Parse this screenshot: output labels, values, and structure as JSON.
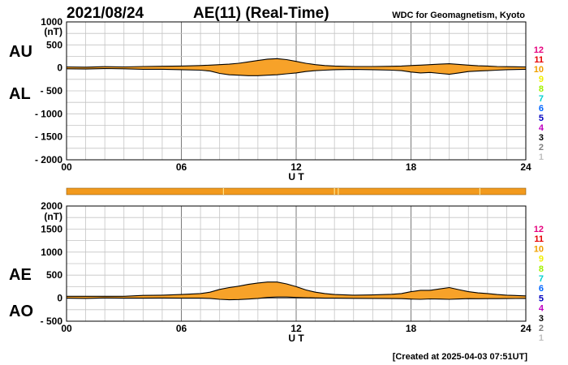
{
  "header": {
    "date": "2021/08/24",
    "title": "AE(11) (Real-Time)",
    "source": "WDC for Geomagnetism, Kyoto"
  },
  "footer": {
    "created": "[Created at 2025-04-03 07:51UT]"
  },
  "stations": {
    "labels": [
      "12",
      "11",
      "10",
      "9",
      "8",
      "7",
      "6",
      "5",
      "4",
      "3",
      "2",
      "1"
    ],
    "colors": [
      "#e6007e",
      "#e60000",
      "#f0a000",
      "#f0f000",
      "#a0f000",
      "#00d0d0",
      "#0066ff",
      "#0000c0",
      "#c000c0",
      "#000000",
      "#808080",
      "#c0c0c0"
    ]
  },
  "coverage_bar": {
    "color": "#f29a1d",
    "gaps_ut": [
      8.2,
      14.0,
      14.2,
      21.6
    ]
  },
  "colors": {
    "fill": "#f7a229",
    "line": "#000000"
  },
  "chart_data": [
    {
      "type": "area",
      "panel": "AU/AL",
      "labels": [
        "AU",
        "AL"
      ],
      "unit": "(nT)",
      "xlabel": "U T",
      "xticks": [
        "00",
        "06",
        "12",
        "18",
        "24"
      ],
      "xlim": [
        0,
        24
      ],
      "ylim": [
        -2000,
        1000
      ],
      "yticks": [
        "1000",
        "500",
        "0",
        "- 500",
        "- 1000",
        "- 1500",
        "- 2000"
      ],
      "x": [
        0,
        1,
        2,
        3,
        4,
        5,
        6,
        7,
        7.5,
        8,
        8.5,
        9,
        9.5,
        10,
        10.5,
        11,
        11.5,
        12,
        12.5,
        13,
        13.5,
        14,
        15,
        16,
        17,
        17.5,
        18,
        18.5,
        19,
        19.5,
        20,
        20.5,
        21,
        21.5,
        22,
        22.5,
        23,
        24
      ],
      "series": [
        {
          "name": "AU",
          "values": [
            20,
            15,
            25,
            20,
            30,
            35,
            40,
            50,
            60,
            70,
            80,
            100,
            130,
            160,
            190,
            200,
            180,
            140,
            100,
            70,
            50,
            40,
            30,
            30,
            35,
            40,
            50,
            60,
            70,
            80,
            90,
            75,
            60,
            45,
            40,
            30,
            25,
            20
          ]
        },
        {
          "name": "AL",
          "values": [
            -20,
            -25,
            -15,
            -20,
            -30,
            -30,
            -40,
            -50,
            -70,
            -120,
            -150,
            -160,
            -170,
            -170,
            -160,
            -150,
            -130,
            -110,
            -80,
            -60,
            -50,
            -40,
            -35,
            -40,
            -50,
            -60,
            -90,
            -110,
            -100,
            -120,
            -140,
            -110,
            -80,
            -70,
            -60,
            -50,
            -40,
            -30
          ]
        }
      ]
    },
    {
      "type": "area",
      "panel": "AE/AO",
      "labels": [
        "AE",
        "AO"
      ],
      "unit": "(nT)",
      "xlabel": "U T",
      "xticks": [
        "00",
        "06",
        "12",
        "18",
        "24"
      ],
      "xlim": [
        0,
        24
      ],
      "ylim": [
        -500,
        2000
      ],
      "yticks": [
        "2000",
        "1500",
        "1000",
        "500",
        "0",
        "- 500"
      ],
      "x": [
        0,
        1,
        2,
        3,
        4,
        5,
        6,
        7,
        7.5,
        8,
        8.5,
        9,
        9.5,
        10,
        10.5,
        11,
        11.5,
        12,
        12.5,
        13,
        13.5,
        14,
        15,
        16,
        17,
        17.5,
        18,
        18.5,
        19,
        19.5,
        20,
        20.5,
        21,
        21.5,
        22,
        22.5,
        23,
        24
      ],
      "series": [
        {
          "name": "AE",
          "values": [
            40,
            40,
            40,
            40,
            60,
            65,
            80,
            100,
            130,
            190,
            230,
            260,
            300,
            330,
            350,
            350,
            310,
            250,
            180,
            130,
            100,
            80,
            65,
            70,
            85,
            100,
            140,
            170,
            170,
            200,
            230,
            185,
            140,
            115,
            100,
            80,
            65,
            50
          ]
        },
        {
          "name": "AO",
          "values": [
            0,
            -5,
            5,
            0,
            0,
            3,
            0,
            0,
            -5,
            -25,
            -35,
            -30,
            -20,
            -5,
            15,
            25,
            25,
            15,
            10,
            5,
            0,
            0,
            -3,
            -5,
            -8,
            -10,
            -20,
            -25,
            -15,
            -20,
            -25,
            -18,
            -10,
            -12,
            -10,
            -10,
            -8,
            -5
          ]
        }
      ]
    }
  ]
}
